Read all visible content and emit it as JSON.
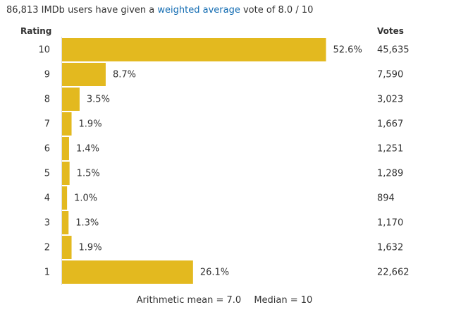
{
  "summary": {
    "prefix": "86,813 IMDb users have given a",
    "link": "weighted average",
    "suffix": "vote of 8.0 / 10"
  },
  "headers": {
    "rating": "Rating",
    "votes": "Votes"
  },
  "stats": {
    "mean": "Arithmetic mean = 7.0",
    "median": "Median = 10"
  },
  "colors": {
    "bar": "#e3b91f",
    "text": "#333333",
    "link": "#136cb2"
  },
  "chart_data": {
    "type": "bar",
    "orientation": "horizontal",
    "categories": [
      "10",
      "9",
      "8",
      "7",
      "6",
      "5",
      "4",
      "3",
      "2",
      "1"
    ],
    "percent": [
      52.6,
      8.7,
      3.5,
      1.9,
      1.4,
      1.5,
      1.0,
      1.3,
      1.9,
      26.1
    ],
    "percent_labels": [
      "52.6%",
      "8.7%",
      "3.5%",
      "1.9%",
      "1.4%",
      "1.5%",
      "1.0%",
      "1.3%",
      "1.9%",
      "26.1%"
    ],
    "votes": [
      "45,635",
      "7,590",
      "3,023",
      "1,667",
      "1,251",
      "1,289",
      "894",
      "1,170",
      "1,632",
      "22,662"
    ]
  }
}
